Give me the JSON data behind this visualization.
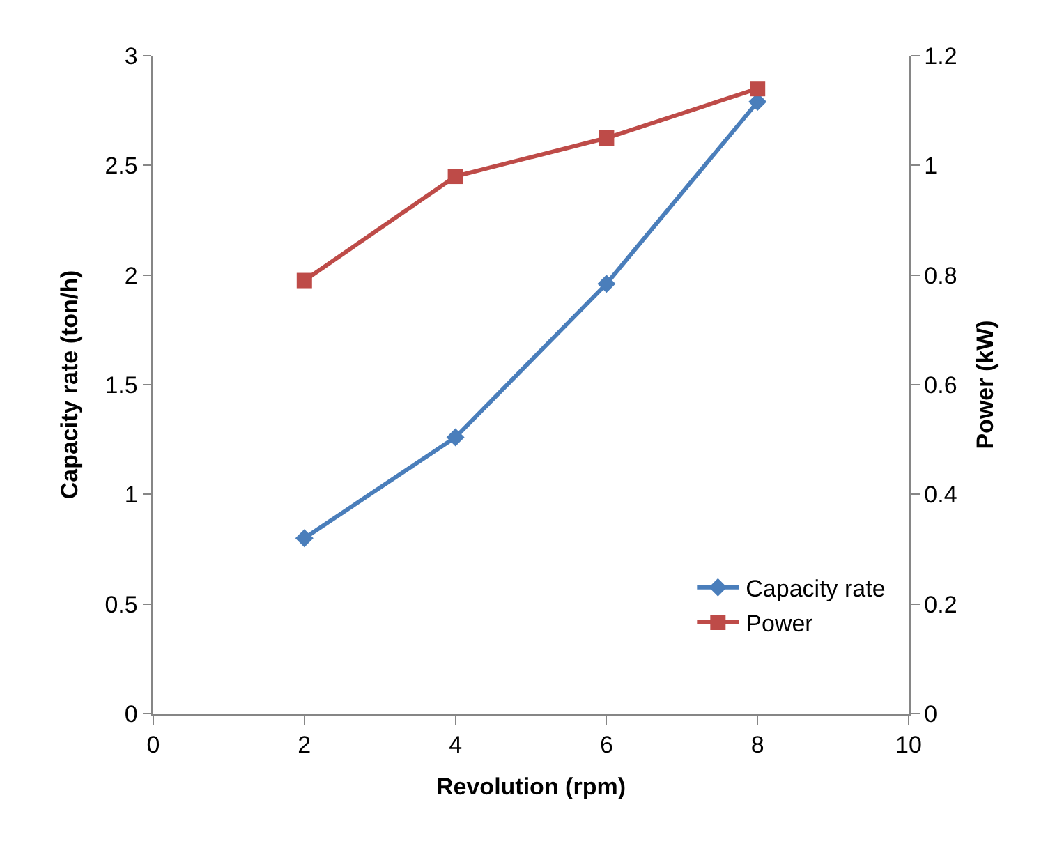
{
  "chart_data": {
    "type": "line",
    "xlabel": "Revolution (rpm)",
    "ylabel": "Capacity rate (ton/h)",
    "y2label": "Power (kW)",
    "x": [
      2,
      4,
      6,
      8
    ],
    "series": [
      {
        "name": "Capacity rate",
        "color": "#4a7ebb",
        "values": [
          0.8,
          1.26,
          1.96,
          2.79
        ],
        "marker": "diamond"
      },
      {
        "name": "Power",
        "color": "#be4b48",
        "values": [
          0.79,
          0.98,
          1.05,
          1.14
        ],
        "marker": "square",
        "axis": "y2"
      }
    ],
    "xlim": [
      0,
      10
    ],
    "xticks": [
      0,
      2,
      4,
      6,
      8,
      10
    ],
    "ylim": [
      0,
      3
    ],
    "yticks": [
      0,
      0.5,
      1,
      1.5,
      2,
      2.5,
      3
    ],
    "y2lim": [
      0,
      1.2
    ],
    "y2ticks": [
      0,
      0.2,
      0.4,
      0.6,
      0.8,
      1,
      1.2
    ],
    "legend": "bottom right",
    "line_style": "solid"
  }
}
